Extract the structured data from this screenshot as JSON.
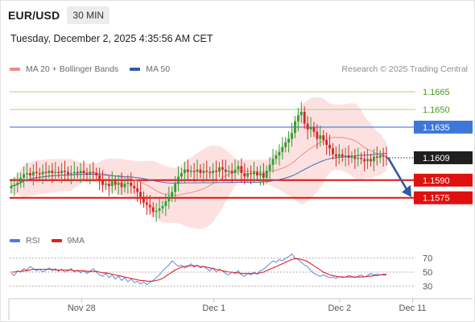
{
  "header": {
    "symbol": "EUR/USD",
    "timeframe": "30 MIN",
    "timestamp": "Tuesday, December 2, 2025 4:35:56 AM CET"
  },
  "legend": {
    "main": [
      {
        "label": "MA 20 + Bollinger Bands",
        "color": "#f28b86"
      },
      {
        "label": "MA 50",
        "color": "#2f5ea8"
      }
    ],
    "rsi": [
      {
        "label": "RSI",
        "color": "#4f7bd8"
      },
      {
        "label": "9MA",
        "color": "#e02020"
      }
    ]
  },
  "copyright": "Research © 2025 Trading Central",
  "colors": {
    "up": "#2c9e2c",
    "down": "#d62424",
    "bollinger_fill": "#fde1e1",
    "resistance": "#a8d08d",
    "pivot": "#3d78d8",
    "support": "#e01010",
    "arrow": "#2e5aa0"
  },
  "chart_data": [
    {
      "type": "candlestick",
      "title": "EUR/USD 30 MIN",
      "ylim": [
        1.1555,
        1.1678
      ],
      "x_ticks": [
        "Nov 28",
        "Dec 1",
        "Dec 2",
        "Dec 11"
      ],
      "current_price": "1.1609",
      "levels": [
        {
          "label": "1.1665",
          "value": 1.1665,
          "kind": "resistance"
        },
        {
          "label": "1.1650",
          "value": 1.165,
          "kind": "resistance"
        },
        {
          "label": "1.1635",
          "value": 1.1635,
          "kind": "pivot"
        },
        {
          "label": "1.1590",
          "value": 1.159,
          "kind": "support"
        },
        {
          "label": "1.1575",
          "value": 1.1575,
          "kind": "support"
        }
      ],
      "forecast_arrow": {
        "from": 1.1609,
        "to": 1.1575,
        "direction": "down"
      },
      "ohlc_close": [
        1.1585,
        1.1586,
        1.1588,
        1.1592,
        1.1595,
        1.1596,
        1.1594,
        1.1597,
        1.1596,
        1.1595,
        1.1597,
        1.1596,
        1.1598,
        1.1596,
        1.1597,
        1.1596,
        1.1598,
        1.1597,
        1.1595,
        1.1596,
        1.1597,
        1.1596,
        1.1598,
        1.1596,
        1.1595,
        1.1597,
        1.1596,
        1.1594,
        1.159,
        1.1586,
        1.1587,
        1.1585,
        1.1589,
        1.1586,
        1.1588,
        1.1584,
        1.1587,
        1.1588,
        1.1585,
        1.1583,
        1.158,
        1.1576,
        1.1571,
        1.1569,
        1.1567,
        1.1563,
        1.1564,
        1.1566,
        1.1568,
        1.1572,
        1.1576,
        1.158,
        1.1587,
        1.1593,
        1.1596,
        1.1599,
        1.1597,
        1.1598,
        1.1597,
        1.1599,
        1.1596,
        1.1598,
        1.1597,
        1.1596,
        1.1598,
        1.1597,
        1.1601,
        1.1599,
        1.1597,
        1.1598,
        1.1596,
        1.1599,
        1.1602,
        1.1596,
        1.1593,
        1.1596,
        1.1595,
        1.1597,
        1.1594,
        1.1596,
        1.1592,
        1.1598,
        1.1603,
        1.1608,
        1.1611,
        1.1614,
        1.1618,
        1.1622,
        1.1625,
        1.163,
        1.164,
        1.1645,
        1.1648,
        1.1638,
        1.1633,
        1.1635,
        1.1631,
        1.1625,
        1.1628,
        1.1624,
        1.162,
        1.1617,
        1.1612,
        1.161,
        1.1612,
        1.161,
        1.1611,
        1.1609,
        1.161,
        1.1608,
        1.1609,
        1.1608,
        1.1606,
        1.1608,
        1.1606,
        1.161,
        1.1609,
        1.1611,
        1.161,
        1.1609
      ],
      "rsi_ticks": [
        70,
        50,
        30
      ],
      "rsi_ylim": [
        20,
        80
      ],
      "rsi": [
        48,
        45,
        52,
        50,
        55,
        53,
        58,
        55,
        52,
        54,
        50,
        53,
        56,
        52,
        55,
        51,
        54,
        50,
        52,
        55,
        50,
        53,
        49,
        52,
        48,
        51,
        55,
        50,
        46,
        44,
        48,
        42,
        46,
        40,
        44,
        38,
        42,
        36,
        40,
        35,
        37,
        33,
        36,
        32,
        35,
        38,
        42,
        46,
        52,
        56,
        60,
        66,
        62,
        58,
        60,
        56,
        58,
        62,
        57,
        60,
        56,
        58,
        55,
        52,
        56,
        50,
        54,
        52,
        48,
        46,
        50,
        48,
        52,
        46,
        44,
        48,
        46,
        50,
        47,
        52,
        54,
        58,
        62,
        66,
        64,
        68,
        66,
        70,
        72,
        76,
        70,
        68,
        64,
        60,
        58,
        52,
        48,
        46,
        44,
        46,
        44,
        42,
        43,
        41,
        44,
        42,
        43,
        45,
        44,
        42,
        44,
        46,
        43,
        45,
        48,
        46,
        47,
        46,
        47,
        47
      ],
      "rsi_ma": [
        50,
        50,
        51,
        51,
        52,
        52,
        53,
        54,
        54,
        54,
        54,
        54,
        54,
        54,
        53,
        53,
        53,
        53,
        53,
        53,
        52,
        52,
        52,
        52,
        51,
        51,
        51,
        51,
        50,
        49,
        49,
        48,
        47,
        46,
        45,
        44,
        43,
        42,
        41,
        40,
        39,
        38,
        38,
        37,
        37,
        37,
        38,
        39,
        41,
        44,
        47,
        50,
        53,
        55,
        57,
        58,
        59,
        59,
        59,
        59,
        58,
        58,
        57,
        56,
        55,
        54,
        53,
        52,
        51,
        50,
        50,
        49,
        49,
        48,
        48,
        48,
        48,
        48,
        48,
        49,
        50,
        52,
        54,
        56,
        58,
        60,
        62,
        64,
        66,
        68,
        69,
        69,
        68,
        67,
        65,
        62,
        59,
        56,
        53,
        50,
        48,
        46,
        45,
        44,
        43,
        43,
        43,
        43,
        43,
        43,
        43,
        43,
        43,
        44,
        44,
        45,
        45,
        46,
        46,
        46
      ]
    }
  ]
}
